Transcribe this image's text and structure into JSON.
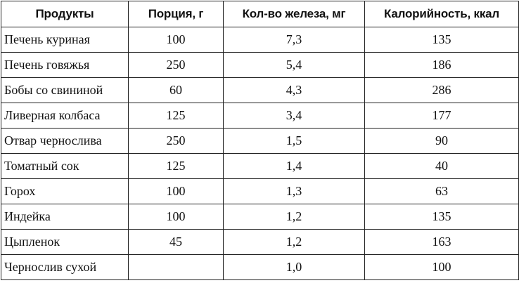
{
  "table": {
    "headers": [
      "Продукты",
      "Порция, г",
      "Кол-во железа, мг",
      "Калорийность, ккал"
    ],
    "rows": [
      [
        "Печень куриная",
        "100",
        "7,3",
        "135"
      ],
      [
        "Печень говяжья",
        "250",
        "5,4",
        "186"
      ],
      [
        "Бобы со свининой",
        "60",
        "4,3",
        "286"
      ],
      [
        "Ливерная колбаса",
        "125",
        "3,4",
        "177"
      ],
      [
        "Отвар чернослива",
        "250",
        "1,5",
        "90"
      ],
      [
        "Томатный сок",
        "125",
        "1,4",
        "40"
      ],
      [
        "Горох",
        "100",
        "1,3",
        "63"
      ],
      [
        "Индейка",
        "100",
        "1,2",
        "135"
      ],
      [
        "Цыпленок",
        "45",
        "1,2",
        "163"
      ],
      [
        "Чернослив сухой",
        "",
        "1,0",
        "100"
      ]
    ]
  }
}
